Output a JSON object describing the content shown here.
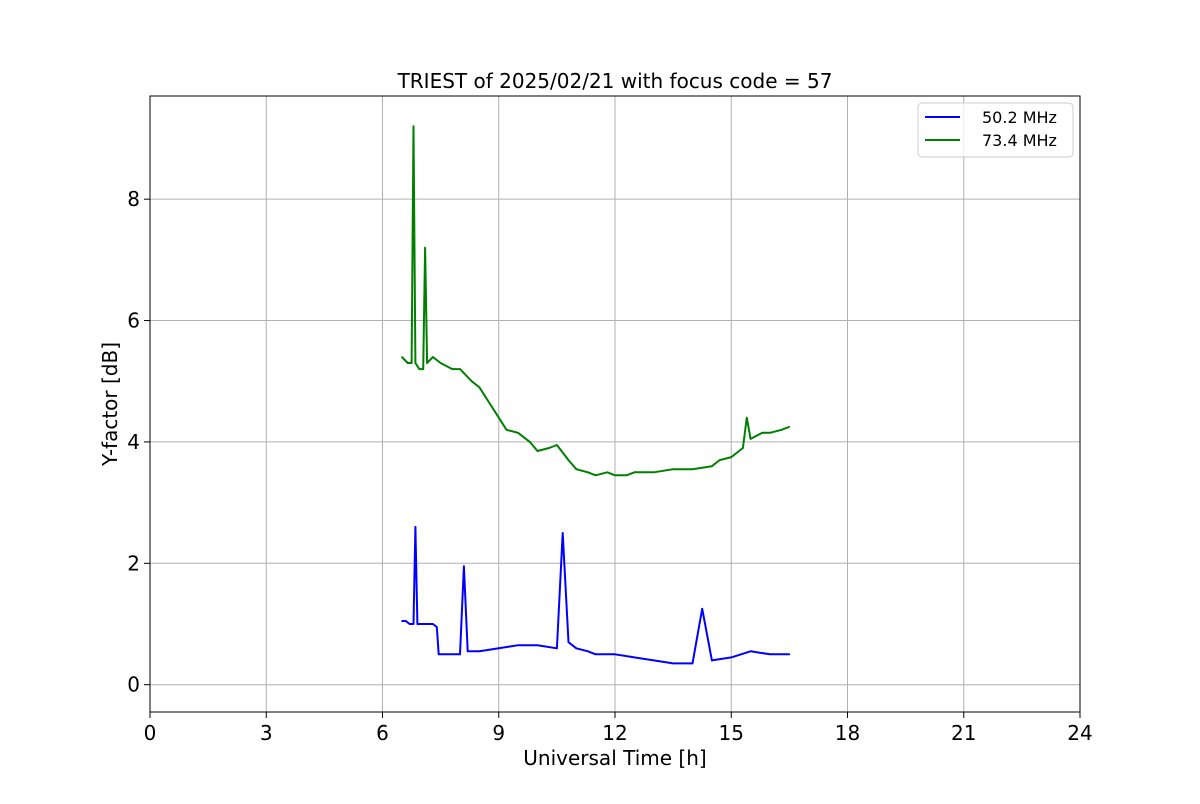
{
  "chart_data": {
    "type": "line",
    "title": "TRIEST of 2025/02/21 with focus code = 57",
    "xlabel": "Universal Time [h]",
    "ylabel": "Y-factor [dB]",
    "xlim": [
      0,
      24
    ],
    "ylim": [
      -0.45,
      9.7
    ],
    "xticks": [
      0,
      3,
      6,
      9,
      12,
      15,
      18,
      21,
      24
    ],
    "yticks": [
      0,
      2,
      4,
      6,
      8
    ],
    "grid": true,
    "legend_position": "top-right",
    "series": [
      {
        "name": "50.2 MHz",
        "color": "#0000ff",
        "x": [
          6.5,
          6.6,
          6.7,
          6.8,
          6.85,
          6.9,
          7.0,
          7.1,
          7.2,
          7.3,
          7.4,
          7.45,
          7.5,
          7.7,
          8.0,
          8.1,
          8.2,
          8.5,
          9.0,
          9.5,
          10.0,
          10.5,
          10.65,
          10.8,
          11.0,
          11.3,
          11.5,
          12.0,
          12.5,
          13.0,
          13.5,
          14.0,
          14.25,
          14.5,
          15.0,
          15.5,
          16.0,
          16.5
        ],
        "y": [
          1.05,
          1.05,
          1.0,
          1.0,
          2.6,
          1.0,
          1.0,
          1.0,
          1.0,
          1.0,
          0.95,
          0.5,
          0.5,
          0.5,
          0.5,
          1.95,
          0.55,
          0.55,
          0.6,
          0.65,
          0.65,
          0.6,
          2.5,
          0.7,
          0.6,
          0.55,
          0.5,
          0.5,
          0.45,
          0.4,
          0.35,
          0.35,
          1.25,
          0.4,
          0.45,
          0.55,
          0.5,
          0.5
        ]
      },
      {
        "name": "73.4 MHz",
        "color": "#008000",
        "x": [
          6.5,
          6.65,
          6.75,
          6.8,
          6.85,
          6.95,
          7.05,
          7.1,
          7.15,
          7.3,
          7.5,
          7.8,
          8.0,
          8.3,
          8.5,
          8.8,
          9.0,
          9.2,
          9.5,
          9.8,
          10.0,
          10.3,
          10.5,
          10.8,
          11.0,
          11.3,
          11.5,
          11.8,
          12.0,
          12.3,
          12.5,
          12.8,
          13.0,
          13.5,
          14.0,
          14.5,
          14.7,
          15.0,
          15.3,
          15.4,
          15.5,
          15.8,
          16.0,
          16.3,
          16.5
        ],
        "y": [
          5.4,
          5.3,
          5.3,
          9.2,
          5.3,
          5.2,
          5.2,
          7.2,
          5.3,
          5.4,
          5.3,
          5.2,
          5.2,
          5.0,
          4.9,
          4.6,
          4.4,
          4.2,
          4.15,
          4.0,
          3.85,
          3.9,
          3.95,
          3.7,
          3.55,
          3.5,
          3.45,
          3.5,
          3.45,
          3.45,
          3.5,
          3.5,
          3.5,
          3.55,
          3.55,
          3.6,
          3.7,
          3.75,
          3.9,
          4.4,
          4.05,
          4.15,
          4.15,
          4.2,
          4.25
        ]
      }
    ]
  }
}
